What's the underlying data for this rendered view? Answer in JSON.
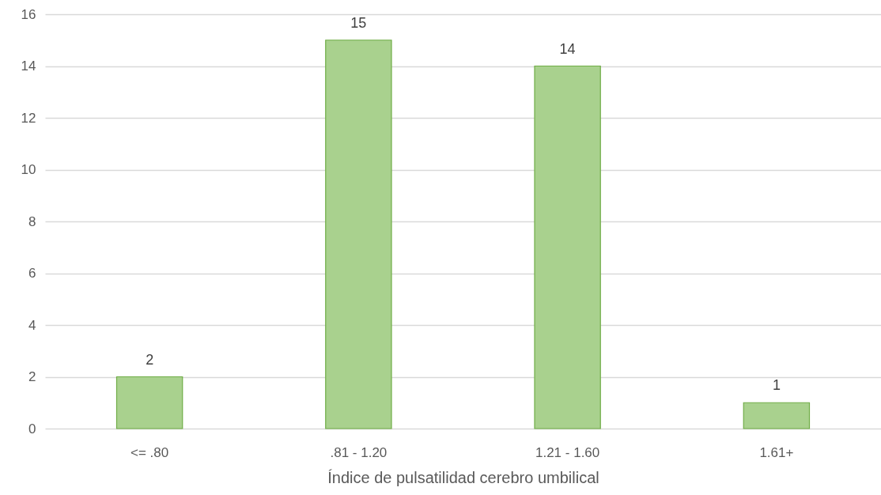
{
  "chart_data": {
    "type": "bar",
    "xlabel": "Índice de pulsatilidad cerebro umbilical",
    "categories": [
      "<= .80",
      ".81 - 1.20",
      "1.21 - 1.60",
      "1.61+"
    ],
    "values": [
      2,
      15,
      14,
      1
    ],
    "color": "#a9d18e",
    "ylim": [
      0,
      16
    ],
    "yticks": [
      0,
      2,
      4,
      6,
      8,
      10,
      12,
      14,
      16
    ],
    "grid": "y",
    "data_labels": true
  }
}
